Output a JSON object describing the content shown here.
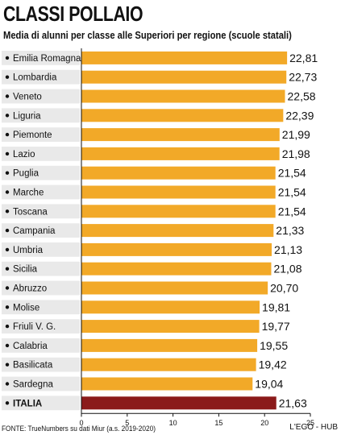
{
  "header": {
    "title": "CLASSI POLLAIO",
    "subtitle": "Media di alunni per classe alle Superiori per regione (scuole statali)"
  },
  "footer": {
    "source": "FONTE: TrueNumbers su dati Miur (a.s. 2019-2020)",
    "brand": "L'EGO - HUB"
  },
  "colors": {
    "bar": "#f2a928",
    "highlight": "#8b1a1a",
    "row_band": "#e9e9e9"
  },
  "chart_data": {
    "type": "bar",
    "orientation": "horizontal",
    "categories": [
      "Emilia Romagna",
      "Lombardia",
      "Veneto",
      "Liguria",
      "Piemonte",
      "Lazio",
      "Puglia",
      "Marche",
      "Toscana",
      "Campania",
      "Umbria",
      "Sicilia",
      "Abruzzo",
      "Molise",
      "Friuli V. G.",
      "Calabria",
      "Basilicata",
      "Sardegna",
      "ITALIA"
    ],
    "values": [
      22.81,
      22.73,
      22.58,
      22.39,
      21.99,
      21.98,
      21.54,
      21.54,
      21.54,
      21.33,
      21.13,
      21.08,
      20.7,
      19.81,
      19.77,
      19.55,
      19.42,
      19.04,
      21.63
    ],
    "value_labels": [
      "22,81",
      "22,73",
      "22,58",
      "22,39",
      "21,99",
      "21,98",
      "21,54",
      "21,54",
      "21,54",
      "21,33",
      "21,13",
      "21,08",
      "20,70",
      "19,81",
      "19,77",
      "19,55",
      "19,42",
      "19,04",
      "21,63"
    ],
    "highlight_category": "ITALIA",
    "xlim": [
      0,
      25
    ],
    "x_ticks": [
      "0",
      "5",
      "10",
      "15",
      "20",
      "25"
    ],
    "grid": false,
    "title": "CLASSI POLLAIO",
    "xlabel": "",
    "ylabel": ""
  }
}
